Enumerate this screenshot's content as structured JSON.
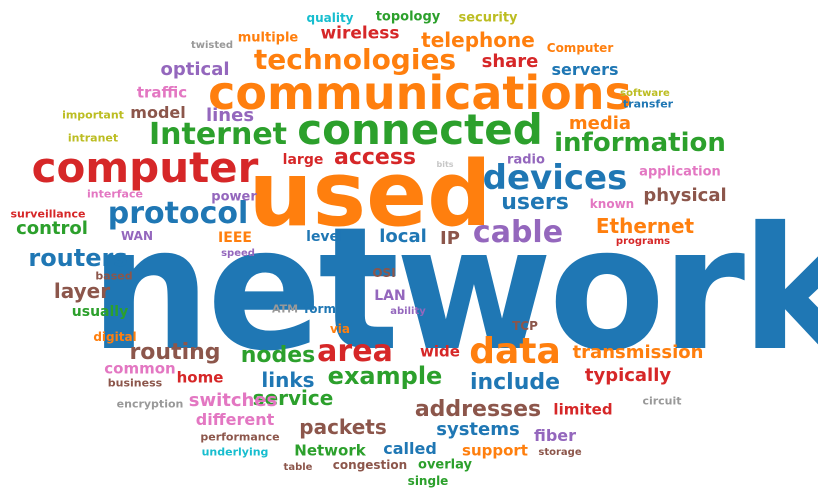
{
  "palette": {
    "blue": "#1f77b4",
    "orange": "#ff7f0e",
    "green": "#2ca02c",
    "red": "#d62728",
    "purple": "#9467bd",
    "brown": "#8c564b",
    "pink": "#e377c2",
    "gray": "#999999",
    "olive": "#bcbd22",
    "cyan": "#17becf",
    "light": "#c7c7c7"
  },
  "words": [
    {
      "text": "network",
      "color": "blue"
    },
    {
      "text": "used",
      "color": "orange"
    },
    {
      "text": "communications",
      "color": "orange"
    },
    {
      "text": "computer",
      "color": "red"
    },
    {
      "text": "connected",
      "color": "green"
    },
    {
      "text": "technologies",
      "color": "orange"
    },
    {
      "text": "Internet",
      "color": "green"
    },
    {
      "text": "protocol",
      "color": "blue"
    },
    {
      "text": "devices",
      "color": "blue"
    },
    {
      "text": "information",
      "color": "green"
    },
    {
      "text": "data",
      "color": "orange"
    },
    {
      "text": "area",
      "color": "red"
    },
    {
      "text": "cable",
      "color": "purple"
    },
    {
      "text": "routers",
      "color": "blue"
    },
    {
      "text": "access",
      "color": "red"
    },
    {
      "text": "example",
      "color": "green"
    },
    {
      "text": "routing",
      "color": "brown"
    },
    {
      "text": "nodes",
      "color": "green"
    },
    {
      "text": "include",
      "color": "blue"
    },
    {
      "text": "addresses",
      "color": "brown"
    },
    {
      "text": "users",
      "color": "blue"
    },
    {
      "text": "Ethernet",
      "color": "orange"
    },
    {
      "text": "transmission",
      "color": "orange"
    },
    {
      "text": "telephone",
      "color": "orange"
    },
    {
      "text": "wireless",
      "color": "red"
    },
    {
      "text": "share",
      "color": "red"
    },
    {
      "text": "optical",
      "color": "purple"
    },
    {
      "text": "lines",
      "color": "purple"
    },
    {
      "text": "media",
      "color": "orange"
    },
    {
      "text": "physical",
      "color": "brown"
    },
    {
      "text": "layer",
      "color": "brown"
    },
    {
      "text": "links",
      "color": "blue"
    },
    {
      "text": "service",
      "color": "green"
    },
    {
      "text": "packets",
      "color": "brown"
    },
    {
      "text": "switches",
      "color": "pink"
    },
    {
      "text": "systems",
      "color": "blue"
    },
    {
      "text": "typically",
      "color": "red"
    },
    {
      "text": "control",
      "color": "green"
    },
    {
      "text": "local",
      "color": "blue"
    },
    {
      "text": "IP",
      "color": "brown"
    },
    {
      "text": "servers",
      "color": "blue"
    },
    {
      "text": "topology",
      "color": "green"
    },
    {
      "text": "multiple",
      "color": "orange"
    },
    {
      "text": "quality",
      "color": "cyan"
    },
    {
      "text": "security",
      "color": "olive"
    },
    {
      "text": "Computer",
      "color": "orange"
    },
    {
      "text": "traffic",
      "color": "pink"
    },
    {
      "text": "model",
      "color": "brown"
    },
    {
      "text": "large",
      "color": "red"
    },
    {
      "text": "fiber",
      "color": "purple"
    },
    {
      "text": "different",
      "color": "pink"
    },
    {
      "text": "home",
      "color": "red"
    },
    {
      "text": "common",
      "color": "pink"
    },
    {
      "text": "wide",
      "color": "red"
    },
    {
      "text": "limited",
      "color": "red"
    },
    {
      "text": "called",
      "color": "blue"
    },
    {
      "text": "Network",
      "color": "green"
    },
    {
      "text": "support",
      "color": "orange"
    },
    {
      "text": "usually",
      "color": "green"
    },
    {
      "text": "IEEE",
      "color": "orange"
    },
    {
      "text": "LAN",
      "color": "purple"
    },
    {
      "text": "level",
      "color": "blue"
    },
    {
      "text": "overlay",
      "color": "green"
    },
    {
      "text": "power",
      "color": "purple"
    },
    {
      "text": "radio",
      "color": "purple"
    },
    {
      "text": "known",
      "color": "pink"
    },
    {
      "text": "application",
      "color": "pink"
    },
    {
      "text": "TCP",
      "color": "brown"
    },
    {
      "text": "form",
      "color": "blue"
    },
    {
      "text": "via",
      "color": "orange"
    },
    {
      "text": "OSI",
      "color": "brown"
    },
    {
      "text": "WAN",
      "color": "purple"
    },
    {
      "text": "digital",
      "color": "orange"
    },
    {
      "text": "based",
      "color": "brown"
    },
    {
      "text": "ATM",
      "color": "gray"
    },
    {
      "text": "ability",
      "color": "purple"
    },
    {
      "text": "speed",
      "color": "purple"
    },
    {
      "text": "interface",
      "color": "pink"
    },
    {
      "text": "surveillance",
      "color": "red"
    },
    {
      "text": "intranet",
      "color": "olive"
    },
    {
      "text": "important",
      "color": "olive"
    },
    {
      "text": "twisted",
      "color": "gray"
    },
    {
      "text": "software",
      "color": "olive"
    },
    {
      "text": "transfer",
      "color": "blue"
    },
    {
      "text": "bits",
      "color": "light"
    },
    {
      "text": "programs",
      "color": "red"
    },
    {
      "text": "business",
      "color": "brown"
    },
    {
      "text": "encryption",
      "color": "gray"
    },
    {
      "text": "performance",
      "color": "brown"
    },
    {
      "text": "underlying",
      "color": "cyan"
    },
    {
      "text": "table",
      "color": "brown"
    },
    {
      "text": "congestion",
      "color": "brown"
    },
    {
      "text": "single",
      "color": "green"
    },
    {
      "text": "storage",
      "color": "brown"
    },
    {
      "text": "circuit",
      "color": "gray"
    }
  ]
}
